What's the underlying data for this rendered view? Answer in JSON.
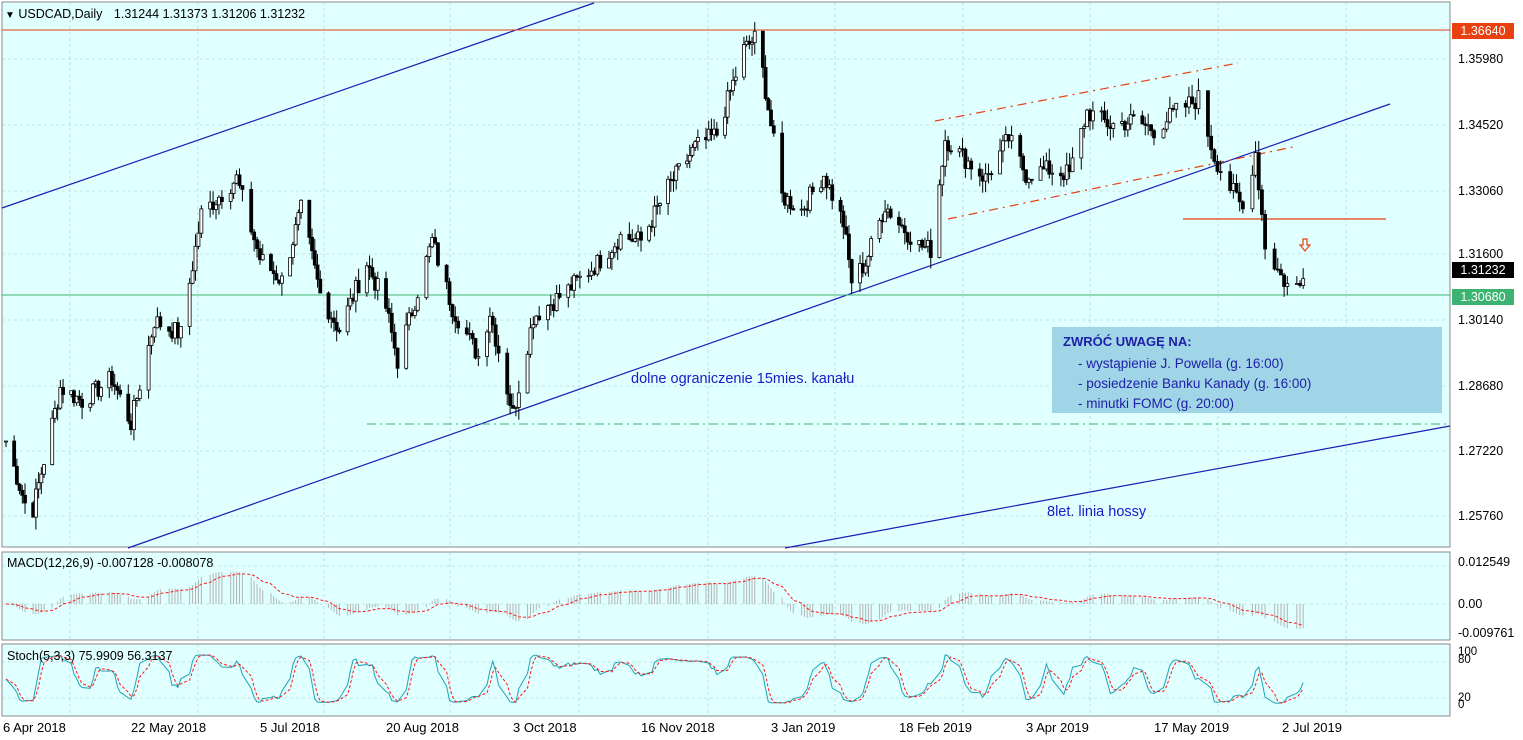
{
  "colors": {
    "chart_bg": "#e0ffff",
    "grid": "#a8c8c8",
    "candle": "#000000",
    "channel_line": "#1c1cb4",
    "red_line": "#e8400f",
    "green_line": "#3cb371",
    "macd_hist": "#b4b4b4",
    "macd_signal": "#ff1a1a",
    "stoch_main": "#1fa3b8",
    "stoch_signal": "#ff1a1a",
    "note_bg": "#9fd5e6",
    "note_text": "#1e1ea8"
  },
  "header": {
    "symbol": "USDCAD,Daily",
    "ohlc": "1.31244 1.31373 1.31206 1.31232"
  },
  "price_axis": {
    "ticks": [
      "1.35980",
      "1.34520",
      "1.33060",
      "1.31600",
      "1.30140",
      "1.28680",
      "1.27220",
      "1.25760"
    ],
    "tag_high": "1.36640",
    "tag_current": "1.31232",
    "tag_low": "1.30680"
  },
  "macd": {
    "label": "MACD(12,26,9) -0.007128 -0.008078",
    "ticks": [
      "0.012549",
      "0.00",
      "-0.009761"
    ]
  },
  "stoch": {
    "label": "Stoch(5,3,3) 75.9909 56.3137",
    "ticks": [
      "100",
      "80",
      "20",
      "0"
    ]
  },
  "x_axis": {
    "labels": [
      "6 Apr 2018",
      "22 May 2018",
      "5 Jul 2018",
      "20 Aug 2018",
      "3 Oct 2018",
      "16 Nov 2018",
      "3 Jan 2019",
      "18 Feb 2019",
      "3 Apr 2019",
      "17 May 2019",
      "2 Jul 2019"
    ]
  },
  "annotations": {
    "channel": "dolne ograniczenie 15mies. kanału",
    "trend": "8let. linia hossy"
  },
  "note": {
    "title": "ZWRÓĆ UWAGĘ NA:",
    "items": [
      "- wystąpienie J. Powella (g. 16:00)",
      "- posiedzenie Banku Kanady (g. 16:00)",
      "- minutki FOMC (g. 20:00)"
    ]
  },
  "chart_data": {
    "type": "candlestick",
    "symbol": "USDCAD",
    "timeframe": "Daily",
    "x_range": [
      "6 Apr 2018",
      "2 Jul 2019"
    ],
    "y_range": [
      1.25,
      1.37
    ],
    "levels": {
      "resistance": 1.3664,
      "support": 1.3068,
      "current": 1.31232
    },
    "close_path": [
      {
        "x": "6 Apr 2018",
        "y": 1.274
      },
      {
        "x": "15 Apr 2018",
        "y": 1.256
      },
      {
        "x": "26 Apr 2018",
        "y": 1.286
      },
      {
        "x": "4 May 2018",
        "y": 1.283
      },
      {
        "x": "15 May 2018",
        "y": 1.288
      },
      {
        "x": "22 May 2018",
        "y": 1.278
      },
      {
        "x": "30 May 2018",
        "y": 1.301
      },
      {
        "x": "8 Jun 2018",
        "y": 1.298
      },
      {
        "x": "15 Jun 2018",
        "y": 1.325
      },
      {
        "x": "27 Jun 2018",
        "y": 1.333
      },
      {
        "x": "5 Jul 2018",
        "y": 1.315
      },
      {
        "x": "13 Jul 2018",
        "y": 1.31
      },
      {
        "x": "20 Jul 2018",
        "y": 1.326
      },
      {
        "x": "27 Jul 2018",
        "y": 1.307
      },
      {
        "x": "3 Aug 2018",
        "y": 1.299
      },
      {
        "x": "13 Aug 2018",
        "y": 1.314
      },
      {
        "x": "20 Aug 2018",
        "y": 1.304
      },
      {
        "x": "24 Aug 2018",
        "y": 1.292
      },
      {
        "x": "5 Sep 2018",
        "y": 1.319
      },
      {
        "x": "12 Sep 2018",
        "y": 1.304
      },
      {
        "x": "21 Sep 2018",
        "y": 1.293
      },
      {
        "x": "25 Sep 2018",
        "y": 1.303
      },
      {
        "x": "3 Oct 2018",
        "y": 1.28
      },
      {
        "x": "10 Oct 2018",
        "y": 1.302
      },
      {
        "x": "22 Oct 2018",
        "y": 1.308
      },
      {
        "x": "1 Nov 2018",
        "y": 1.314
      },
      {
        "x": "9 Nov 2018",
        "y": 1.32
      },
      {
        "x": "16 Nov 2018",
        "y": 1.319
      },
      {
        "x": "26 Nov 2018",
        "y": 1.331
      },
      {
        "x": "6 Dec 2018",
        "y": 1.34
      },
      {
        "x": "14 Dec 2018",
        "y": 1.343
      },
      {
        "x": "24 Dec 2018",
        "y": 1.362
      },
      {
        "x": "29 Dec 2018",
        "y": 1.365
      },
      {
        "x": "3 Jan 2019",
        "y": 1.345
      },
      {
        "x": "7 Jan 2019",
        "y": 1.329
      },
      {
        "x": "14 Jan 2019",
        "y": 1.326
      },
      {
        "x": "22 Jan 2019",
        "y": 1.334
      },
      {
        "x": "29 Jan 2019",
        "y": 1.323
      },
      {
        "x": "1 Feb 2019",
        "y": 1.31
      },
      {
        "x": "6 Feb 2019",
        "y": 1.314
      },
      {
        "x": "13 Feb 2019",
        "y": 1.327
      },
      {
        "x": "18 Feb 2019",
        "y": 1.323
      },
      {
        "x": "25 Feb 2019",
        "y": 1.318
      },
      {
        "x": "1 Mar 2019",
        "y": 1.317
      },
      {
        "x": "6 Mar 2019",
        "y": 1.342
      },
      {
        "x": "12 Mar 2019",
        "y": 1.338
      },
      {
        "x": "20 Mar 2019",
        "y": 1.333
      },
      {
        "x": "28 Mar 2019",
        "y": 1.342
      },
      {
        "x": "3 Apr 2019",
        "y": 1.334
      },
      {
        "x": "11 Apr 2019",
        "y": 1.335
      },
      {
        "x": "18 Apr 2019",
        "y": 1.334
      },
      {
        "x": "24 Apr 2019",
        "y": 1.348
      },
      {
        "x": "2 May 2019",
        "y": 1.345
      },
      {
        "x": "10 May 2019",
        "y": 1.346
      },
      {
        "x": "17 May 2019",
        "y": 1.344
      },
      {
        "x": "24 May 2019",
        "y": 1.348
      },
      {
        "x": "31 May 2019",
        "y": 1.351
      },
      {
        "x": "5 Jun 2019",
        "y": 1.338
      },
      {
        "x": "10 Jun 2019",
        "y": 1.331
      },
      {
        "x": "14 Jun 2019",
        "y": 1.326
      },
      {
        "x": "18 Jun 2019",
        "y": 1.339
      },
      {
        "x": "21 Jun 2019",
        "y": 1.318
      },
      {
        "x": "26 Jun 2019",
        "y": 1.311
      },
      {
        "x": "29 Jun 2019",
        "y": 1.308
      },
      {
        "x": "2 Jul 2019",
        "y": 1.309
      },
      {
        "x": "3 Jul 2019",
        "y": 1.3123
      }
    ]
  }
}
